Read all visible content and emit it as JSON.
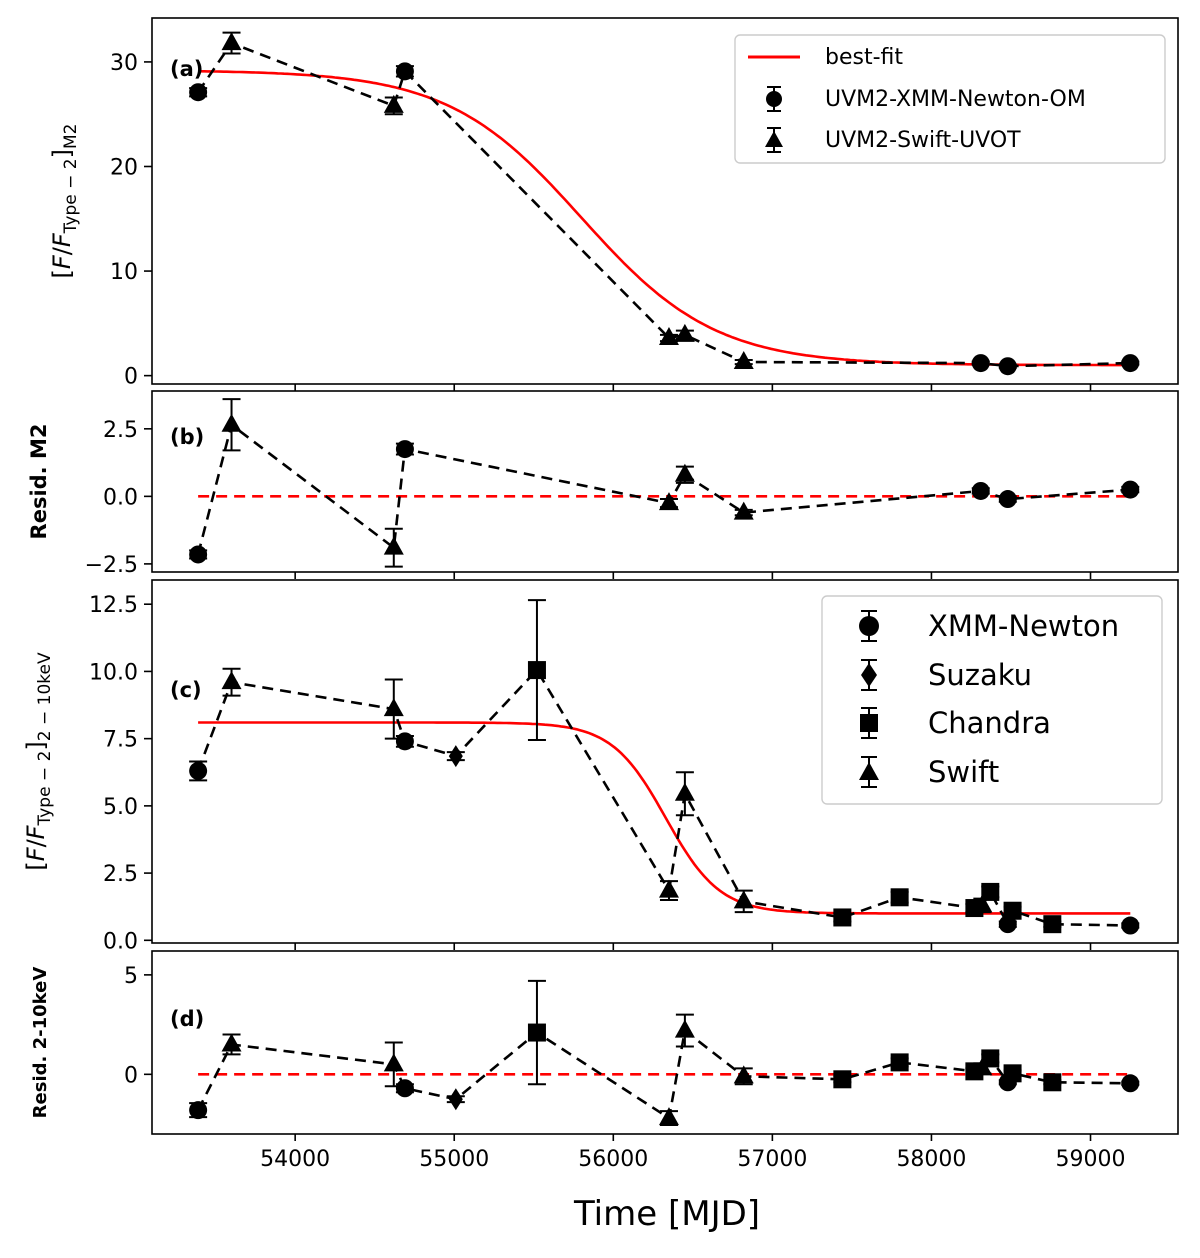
{
  "chart_data": {
    "type": "scatter",
    "xlabel": "Time [MJD]",
    "xlim": [
      53100,
      59550
    ],
    "xticks": [
      54000,
      55000,
      56000,
      57000,
      58000,
      59000
    ],
    "xtick_labels": [
      "54000",
      "55000",
      "56000",
      "57000",
      "58000",
      "59000"
    ],
    "colors": {
      "data": "#000000",
      "fit": "#ff0000"
    },
    "panels": [
      {
        "id": "a",
        "tag": "(a)",
        "ylabel": "[F/F_Type-2]_M2",
        "ylim": [
          -0.8,
          34.2
        ],
        "yticks": [
          0,
          10,
          20,
          30
        ],
        "ytick_labels": [
          "0",
          "10",
          "20",
          "30"
        ],
        "fit_curve": {
          "label": "best-fit",
          "form": "sigmoid",
          "high": 29.2,
          "low": 1.0,
          "mid": 55800,
          "width": 420
        },
        "connect": {
          "x": [
            53390,
            53600,
            54620,
            54690,
            56350,
            56450,
            56820,
            58310,
            58480,
            59250
          ],
          "y": [
            27.1,
            31.8,
            25.8,
            29.1,
            3.6,
            3.9,
            1.3,
            1.2,
            0.9,
            1.2
          ]
        },
        "series": [
          {
            "name": "UVM2-XMM-Newton-OM",
            "marker": "circle",
            "x": [
              53390,
              54690,
              58310,
              58480,
              59250
            ],
            "y": [
              27.1,
              29.1,
              1.2,
              0.9,
              1.2
            ],
            "err": [
              0.4,
              0.5,
              0.15,
              0.15,
              0.15
            ]
          },
          {
            "name": "UVM2-Swift-UVOT",
            "marker": "triangle",
            "x": [
              53600,
              54620,
              56350,
              56450,
              56820
            ],
            "y": [
              31.8,
              25.8,
              3.6,
              3.9,
              1.3
            ],
            "err": [
              1.0,
              0.8,
              0.3,
              0.4,
              0.2
            ]
          }
        ],
        "legend": [
          "best-fit",
          "UVM2-XMM-Newton-OM",
          "UVM2-Swift-UVOT"
        ]
      },
      {
        "id": "b",
        "tag": "(b)",
        "ylabel": "Resid. M2",
        "ylim": [
          -2.8,
          3.9
        ],
        "yticks": [
          -2.5,
          0.0,
          2.5
        ],
        "ytick_labels": [
          "−2.5",
          "0.0",
          "2.5"
        ],
        "zero_line": true,
        "connect": {
          "x": [
            53390,
            53600,
            54620,
            54690,
            56350,
            56450,
            56820,
            58310,
            58480,
            59250
          ],
          "y": [
            -2.15,
            2.65,
            -1.9,
            1.75,
            -0.25,
            0.8,
            -0.6,
            0.2,
            -0.1,
            0.25
          ]
        },
        "series": [
          {
            "name": "UVM2-XMM-Newton-OM",
            "marker": "circle",
            "x": [
              53390,
              54690,
              58310,
              58480,
              59250
            ],
            "y": [
              -2.15,
              1.75,
              0.2,
              -0.1,
              0.25
            ],
            "err": [
              0.15,
              0.2,
              0.1,
              0.1,
              0.1
            ]
          },
          {
            "name": "UVM2-Swift-UVOT",
            "marker": "triangle",
            "x": [
              53600,
              54620,
              56350,
              56450,
              56820
            ],
            "y": [
              2.65,
              -1.9,
              -0.25,
              0.8,
              -0.6
            ],
            "err": [
              0.95,
              0.7,
              0.15,
              0.3,
              0.1
            ]
          }
        ]
      },
      {
        "id": "c",
        "tag": "(c)",
        "ylabel": "[F/F_Type-2]_2-10keV",
        "ylim": [
          -0.1,
          13.4
        ],
        "yticks": [
          0.0,
          2.5,
          5.0,
          7.5,
          10.0,
          12.5
        ],
        "ytick_labels": [
          "0.0",
          "2.5",
          "5.0",
          "7.5",
          "10.0",
          "12.5"
        ],
        "fit_curve": {
          "label": "best-fit",
          "form": "sigmoid",
          "high": 8.1,
          "low": 1.0,
          "mid": 56330,
          "width": 170
        },
        "connect": {
          "x": [
            53390,
            53600,
            54620,
            54690,
            55010,
            55520,
            56350,
            56450,
            56820,
            57440,
            57800,
            58270,
            58320,
            58370,
            58480,
            58510,
            58760,
            59250
          ],
          "y": [
            6.3,
            9.6,
            8.6,
            7.4,
            6.85,
            10.05,
            1.85,
            5.45,
            1.45,
            0.85,
            1.6,
            1.2,
            1.3,
            1.8,
            0.6,
            1.1,
            0.6,
            0.55
          ]
        },
        "series": [
          {
            "name": "XMM-Newton",
            "marker": "circle",
            "x": [
              53390,
              54690,
              58480,
              59250
            ],
            "y": [
              6.3,
              7.4,
              0.6,
              0.55
            ],
            "err": [
              0.35,
              0.2,
              0.1,
              0.08
            ]
          },
          {
            "name": "Suzaku",
            "marker": "diamond",
            "x": [
              55010
            ],
            "y": [
              6.85
            ],
            "err": [
              0.15
            ]
          },
          {
            "name": "Chandra",
            "marker": "square",
            "x": [
              55520,
              57440,
              57800,
              58270,
              58370,
              58510,
              58760
            ],
            "y": [
              10.05,
              0.85,
              1.6,
              1.2,
              1.8,
              1.1,
              0.6
            ],
            "err": [
              2.6,
              0.15,
              0.2,
              0.15,
              0.2,
              0.15,
              0.1
            ]
          },
          {
            "name": "Swift",
            "marker": "triangle",
            "x": [
              53600,
              54620,
              56350,
              56450,
              56820,
              58320
            ],
            "y": [
              9.6,
              8.6,
              1.85,
              5.45,
              1.45,
              1.3
            ],
            "err": [
              0.5,
              1.1,
              0.35,
              0.8,
              0.4,
              0.25
            ]
          }
        ],
        "legend": [
          "XMM-Newton",
          "Suzaku",
          "Chandra",
          "Swift"
        ]
      },
      {
        "id": "d",
        "tag": "(d)",
        "ylabel": "Resid. 2-10keV",
        "ylim": [
          -3.0,
          6.2
        ],
        "yticks": [
          0,
          5
        ],
        "ytick_labels": [
          "0",
          "5"
        ],
        "zero_line": true,
        "connect": {
          "x": [
            53390,
            53600,
            54620,
            54690,
            55010,
            55520,
            56350,
            56450,
            56820,
            57440,
            57800,
            58270,
            58320,
            58370,
            58480,
            58510,
            58760,
            59250
          ],
          "y": [
            -1.8,
            1.5,
            0.5,
            -0.7,
            -1.25,
            2.1,
            -2.2,
            2.2,
            -0.1,
            -0.25,
            0.6,
            0.15,
            0.3,
            0.8,
            -0.4,
            0.05,
            -0.4,
            -0.45
          ]
        },
        "series": [
          {
            "name": "XMM-Newton",
            "marker": "circle",
            "x": [
              53390,
              54690,
              58480,
              59250
            ],
            "y": [
              -1.8,
              -0.7,
              -0.4,
              -0.45
            ],
            "err": [
              0.35,
              0.2,
              0.1,
              0.08
            ]
          },
          {
            "name": "Suzaku",
            "marker": "diamond",
            "x": [
              55010
            ],
            "y": [
              -1.25
            ],
            "err": [
              0.15
            ]
          },
          {
            "name": "Chandra",
            "marker": "square",
            "x": [
              55520,
              57440,
              57800,
              58270,
              58370,
              58510,
              58760
            ],
            "y": [
              2.1,
              -0.25,
              0.6,
              0.15,
              0.8,
              0.05,
              -0.4
            ],
            "err": [
              2.6,
              0.15,
              0.2,
              0.15,
              0.2,
              0.15,
              0.1
            ]
          },
          {
            "name": "Swift",
            "marker": "triangle",
            "x": [
              53600,
              54620,
              56350,
              56450,
              56820,
              58320
            ],
            "y": [
              1.5,
              0.5,
              -2.2,
              2.2,
              -0.1,
              0.3
            ],
            "err": [
              0.5,
              1.1,
              0.35,
              0.8,
              0.4,
              0.25
            ]
          }
        ]
      }
    ]
  }
}
